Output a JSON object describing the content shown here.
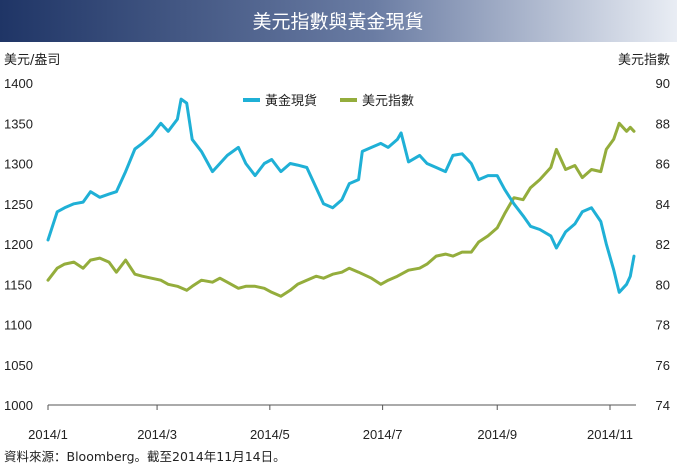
{
  "chart_data": {
    "type": "line",
    "title": "美元指數與黃金現貨",
    "left_axis_label": "美元/盎司",
    "right_axis_label": "美元指數",
    "source_note": "資料來源：Bloomberg。截至2014年11月14日。",
    "x_ticks": [
      "2014/1",
      "2014/3",
      "2014/5",
      "2014/7",
      "2014/9",
      "2014/11"
    ],
    "y_left": {
      "min": 1000,
      "max": 1400,
      "ticks": [
        1000,
        1050,
        1100,
        1150,
        1200,
        1250,
        1300,
        1350,
        1400
      ]
    },
    "y_right": {
      "min": 74,
      "max": 90,
      "ticks": [
        74,
        76,
        78,
        80,
        82,
        84,
        86,
        88,
        90
      ]
    },
    "legend_position": "top-center",
    "grid": false,
    "colors": {
      "title_bar_dark": "#1f3566",
      "title_bar_light": "#e9edf4",
      "gold_series": "#1fb0d6",
      "dxy_series": "#94ad3c"
    },
    "series": [
      {
        "name": "黃金現貨",
        "axis": "left",
        "points": [
          [
            "2014-01-01",
            1205
          ],
          [
            "2014-01-06",
            1240
          ],
          [
            "2014-01-10",
            1245
          ],
          [
            "2014-01-15",
            1250
          ],
          [
            "2014-01-20",
            1252
          ],
          [
            "2014-01-24",
            1265
          ],
          [
            "2014-01-29",
            1258
          ],
          [
            "2014-02-03",
            1262
          ],
          [
            "2014-02-07",
            1265
          ],
          [
            "2014-02-12",
            1290
          ],
          [
            "2014-02-17",
            1318
          ],
          [
            "2014-02-21",
            1325
          ],
          [
            "2014-02-26",
            1335
          ],
          [
            "2014-03-03",
            1350
          ],
          [
            "2014-03-07",
            1340
          ],
          [
            "2014-03-12",
            1355
          ],
          [
            "2014-03-14",
            1380
          ],
          [
            "2014-03-17",
            1375
          ],
          [
            "2014-03-20",
            1330
          ],
          [
            "2014-03-25",
            1315
          ],
          [
            "2014-03-31",
            1290
          ],
          [
            "2014-04-04",
            1300
          ],
          [
            "2014-04-08",
            1310
          ],
          [
            "2014-04-14",
            1320
          ],
          [
            "2014-04-18",
            1300
          ],
          [
            "2014-04-23",
            1285
          ],
          [
            "2014-04-28",
            1300
          ],
          [
            "2014-05-02",
            1305
          ],
          [
            "2014-05-07",
            1290
          ],
          [
            "2014-05-12",
            1300
          ],
          [
            "2014-05-16",
            1298
          ],
          [
            "2014-05-21",
            1295
          ],
          [
            "2014-05-26",
            1270
          ],
          [
            "2014-05-30",
            1250
          ],
          [
            "2014-06-04",
            1245
          ],
          [
            "2014-06-09",
            1255
          ],
          [
            "2014-06-13",
            1275
          ],
          [
            "2014-06-18",
            1280
          ],
          [
            "2014-06-20",
            1315
          ],
          [
            "2014-06-25",
            1320
          ],
          [
            "2014-06-30",
            1325
          ],
          [
            "2014-07-04",
            1320
          ],
          [
            "2014-07-09",
            1330
          ],
          [
            "2014-07-11",
            1338
          ],
          [
            "2014-07-15",
            1302
          ],
          [
            "2014-07-21",
            1310
          ],
          [
            "2014-07-25",
            1300
          ],
          [
            "2014-07-30",
            1295
          ],
          [
            "2014-08-04",
            1290
          ],
          [
            "2014-08-08",
            1310
          ],
          [
            "2014-08-13",
            1312
          ],
          [
            "2014-08-18",
            1300
          ],
          [
            "2014-08-22",
            1280
          ],
          [
            "2014-08-27",
            1285
          ],
          [
            "2014-09-01",
            1285
          ],
          [
            "2014-09-05",
            1268
          ],
          [
            "2014-09-10",
            1250
          ],
          [
            "2014-09-15",
            1235
          ],
          [
            "2014-09-19",
            1222
          ],
          [
            "2014-09-24",
            1218
          ],
          [
            "2014-09-30",
            1210
          ],
          [
            "2014-10-03",
            1195
          ],
          [
            "2014-10-08",
            1215
          ],
          [
            "2014-10-13",
            1225
          ],
          [
            "2014-10-17",
            1240
          ],
          [
            "2014-10-22",
            1245
          ],
          [
            "2014-10-27",
            1228
          ],
          [
            "2014-10-30",
            1200
          ],
          [
            "2014-11-03",
            1168
          ],
          [
            "2014-11-06",
            1140
          ],
          [
            "2014-11-10",
            1150
          ],
          [
            "2014-11-12",
            1160
          ],
          [
            "2014-11-14",
            1185
          ]
        ]
      },
      {
        "name": "美元指數",
        "axis": "right",
        "points": [
          [
            "2014-01-01",
            80.2
          ],
          [
            "2014-01-06",
            80.8
          ],
          [
            "2014-01-10",
            81.0
          ],
          [
            "2014-01-15",
            81.1
          ],
          [
            "2014-01-20",
            80.8
          ],
          [
            "2014-01-24",
            81.2
          ],
          [
            "2014-01-29",
            81.3
          ],
          [
            "2014-02-03",
            81.1
          ],
          [
            "2014-02-07",
            80.6
          ],
          [
            "2014-02-12",
            81.2
          ],
          [
            "2014-02-17",
            80.5
          ],
          [
            "2014-02-21",
            80.4
          ],
          [
            "2014-02-26",
            80.3
          ],
          [
            "2014-03-03",
            80.2
          ],
          [
            "2014-03-07",
            80.0
          ],
          [
            "2014-03-12",
            79.9
          ],
          [
            "2014-03-17",
            79.7
          ],
          [
            "2014-03-20",
            79.9
          ],
          [
            "2014-03-25",
            80.2
          ],
          [
            "2014-03-31",
            80.1
          ],
          [
            "2014-04-04",
            80.3
          ],
          [
            "2014-04-08",
            80.1
          ],
          [
            "2014-04-14",
            79.8
          ],
          [
            "2014-04-18",
            79.9
          ],
          [
            "2014-04-23",
            79.9
          ],
          [
            "2014-04-28",
            79.8
          ],
          [
            "2014-05-02",
            79.6
          ],
          [
            "2014-05-07",
            79.4
          ],
          [
            "2014-05-12",
            79.7
          ],
          [
            "2014-05-16",
            80.0
          ],
          [
            "2014-05-21",
            80.2
          ],
          [
            "2014-05-26",
            80.4
          ],
          [
            "2014-05-30",
            80.3
          ],
          [
            "2014-06-04",
            80.5
          ],
          [
            "2014-06-09",
            80.6
          ],
          [
            "2014-06-13",
            80.8
          ],
          [
            "2014-06-18",
            80.6
          ],
          [
            "2014-06-25",
            80.3
          ],
          [
            "2014-06-30",
            80.0
          ],
          [
            "2014-07-04",
            80.2
          ],
          [
            "2014-07-09",
            80.4
          ],
          [
            "2014-07-15",
            80.7
          ],
          [
            "2014-07-21",
            80.8
          ],
          [
            "2014-07-25",
            81.0
          ],
          [
            "2014-07-30",
            81.4
          ],
          [
            "2014-08-04",
            81.5
          ],
          [
            "2014-08-08",
            81.4
          ],
          [
            "2014-08-13",
            81.6
          ],
          [
            "2014-08-18",
            81.6
          ],
          [
            "2014-08-22",
            82.1
          ],
          [
            "2014-08-27",
            82.4
          ],
          [
            "2014-09-01",
            82.8
          ],
          [
            "2014-09-05",
            83.5
          ],
          [
            "2014-09-10",
            84.3
          ],
          [
            "2014-09-15",
            84.2
          ],
          [
            "2014-09-19",
            84.8
          ],
          [
            "2014-09-24",
            85.2
          ],
          [
            "2014-09-30",
            85.8
          ],
          [
            "2014-10-03",
            86.7
          ],
          [
            "2014-10-08",
            85.7
          ],
          [
            "2014-10-13",
            85.9
          ],
          [
            "2014-10-17",
            85.3
          ],
          [
            "2014-10-22",
            85.7
          ],
          [
            "2014-10-27",
            85.6
          ],
          [
            "2014-10-30",
            86.7
          ],
          [
            "2014-11-03",
            87.2
          ],
          [
            "2014-11-06",
            88.0
          ],
          [
            "2014-11-10",
            87.6
          ],
          [
            "2014-11-12",
            87.8
          ],
          [
            "2014-11-14",
            87.6
          ]
        ]
      }
    ]
  }
}
